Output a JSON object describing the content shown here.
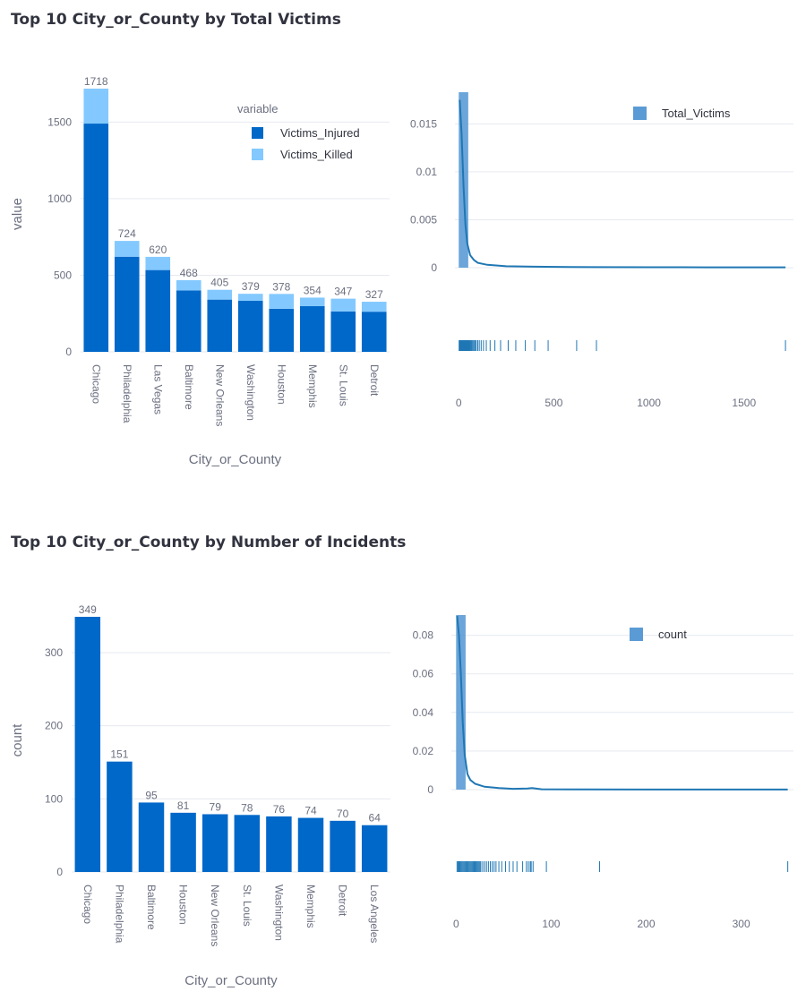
{
  "sections": [
    {
      "title": "Top 10 City_or_County by Total Victims"
    },
    {
      "title": "Top 10 City_or_County by Number of Incidents"
    }
  ],
  "colors": {
    "injured": "#0068c9",
    "killed": "#83c9ff",
    "count": "#0068c9",
    "dist_hist": "#5b9bd5",
    "dist_line": "#1f77b4",
    "grid": "#e6e9ef",
    "tick": "#6b6f80"
  },
  "chart_data": [
    {
      "type": "bar",
      "stacked": true,
      "categories": [
        "Chicago",
        "Philadelphia",
        "Las Vegas",
        "Baltimore",
        "New Orleans",
        "Washington",
        "Houston",
        "Memphis",
        "St. Louis",
        "Detroit"
      ],
      "series": [
        {
          "name": "Victims_Injured",
          "values": [
            1490,
            621,
            534,
            401,
            341,
            333,
            281,
            298,
            264,
            262
          ]
        },
        {
          "name": "Victims_Killed",
          "values": [
            228,
            103,
            86,
            67,
            64,
            46,
            97,
            56,
            83,
            65
          ]
        }
      ],
      "totals": [
        1718,
        724,
        620,
        468,
        405,
        379,
        378,
        354,
        347,
        327
      ],
      "xlabel": "City_or_County",
      "ylabel": "value",
      "ylim": [
        0,
        1800
      ],
      "yticks": [
        0,
        500,
        1000,
        1500
      ],
      "legend_title": "variable",
      "legend_position": "top-right"
    },
    {
      "type": "area",
      "subtype": "distribution-with-rug",
      "series_name": "Total_Victims",
      "xlim": [
        -20,
        1760
      ],
      "xticks": [
        0,
        500,
        1000,
        1500
      ],
      "ylim": [
        -0.001,
        0.0183
      ],
      "yticks": [
        0,
        0.005,
        0.01,
        0.015
      ],
      "ytick_labels": [
        "0",
        "0.005",
        "0.01",
        "0.015"
      ],
      "histogram": [
        {
          "x0": 0,
          "x1": 50,
          "density": 0.0183
        }
      ],
      "density_curve": {
        "x": [
          5,
          15,
          25,
          35,
          45,
          60,
          80,
          100,
          150,
          250,
          400,
          700,
          1000,
          1300,
          1718
        ],
        "y": [
          0.0175,
          0.014,
          0.0085,
          0.0045,
          0.0025,
          0.0013,
          0.0008,
          0.0005,
          0.0003,
          0.00015,
          0.0001,
          6e-05,
          5e-05,
          4e-05,
          4e-05
        ]
      },
      "rug": [
        2,
        4,
        6,
        8,
        10,
        12,
        14,
        16,
        18,
        20,
        22,
        24,
        26,
        28,
        30,
        32,
        34,
        36,
        38,
        40,
        42,
        44,
        46,
        48,
        50,
        52,
        55,
        58,
        62,
        66,
        70,
        75,
        80,
        86,
        92,
        100,
        108,
        118,
        130,
        145,
        165,
        190,
        220,
        260,
        300,
        350,
        400,
        470,
        620,
        724,
        1718
      ],
      "legend_position": "top-right"
    },
    {
      "type": "bar",
      "categories": [
        "Chicago",
        "Philadelphia",
        "Baltimore",
        "Houston",
        "New Orleans",
        "St. Louis",
        "Washington",
        "Memphis",
        "Detroit",
        "Los Angeles"
      ],
      "values": [
        349,
        151,
        95,
        81,
        79,
        78,
        76,
        74,
        70,
        64
      ],
      "xlabel": "City_or_County",
      "ylabel": "count",
      "ylim": [
        0,
        360
      ],
      "yticks": [
        0,
        100,
        200,
        300
      ]
    },
    {
      "type": "area",
      "subtype": "distribution-with-rug",
      "series_name": "count",
      "xlim": [
        -5,
        355
      ],
      "xticks": [
        0,
        100,
        200,
        300
      ],
      "ylim": [
        -0.004,
        0.0905
      ],
      "yticks": [
        0,
        0.02,
        0.04,
        0.06,
        0.08
      ],
      "ytick_labels": [
        "0",
        "0.02",
        "0.04",
        "0.06",
        "0.08"
      ],
      "histogram": [
        {
          "x0": 0,
          "x1": 10,
          "density": 0.0905
        }
      ],
      "density_curve": {
        "x": [
          1,
          3,
          5,
          7,
          9,
          12,
          15,
          20,
          30,
          45,
          60,
          75,
          80,
          90,
          120,
          200,
          300,
          349
        ],
        "y": [
          0.09,
          0.08,
          0.06,
          0.035,
          0.018,
          0.008,
          0.005,
          0.003,
          0.0015,
          0.0008,
          0.0004,
          0.0006,
          0.0008,
          0.0002,
          0.0001,
          5e-05,
          3e-05,
          3e-05
        ]
      },
      "rug": [
        1,
        2,
        3,
        4,
        5,
        6,
        7,
        8,
        9,
        10,
        11,
        12,
        13,
        14,
        15,
        16,
        17,
        18,
        19,
        20,
        21,
        22,
        23,
        24,
        25,
        26,
        28,
        30,
        32,
        34,
        36,
        38,
        40,
        42,
        45,
        48,
        52,
        56,
        60,
        64,
        70,
        74,
        76,
        78,
        79,
        81,
        95,
        151,
        349
      ],
      "legend_position": "top-right"
    }
  ]
}
